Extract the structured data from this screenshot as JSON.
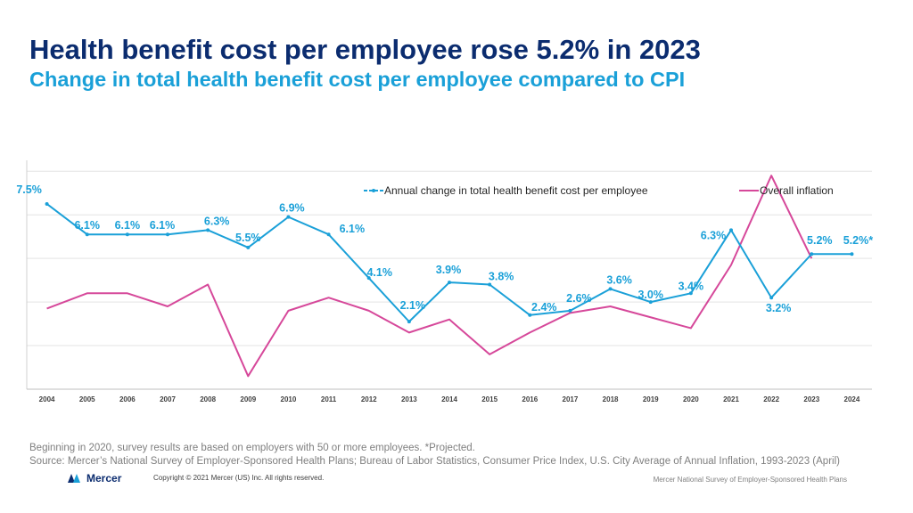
{
  "title": "Health benefit cost per employee rose 5.2% in 2023",
  "subtitle": "Change in total health benefit cost per employee compared to CPI",
  "chart_data": {
    "type": "line",
    "categories": [
      "2004",
      "2005",
      "2006",
      "2007",
      "2008",
      "2009",
      "2010",
      "2011",
      "2012",
      "2013",
      "2014",
      "2015",
      "2016",
      "2017",
      "2018",
      "2019",
      "2020",
      "2021",
      "2022",
      "2023",
      "2024"
    ],
    "series": [
      {
        "name": "Annual change in total health benefit cost per employee",
        "color": "#1aa0d8",
        "values": [
          7.5,
          6.1,
          6.1,
          6.1,
          6.3,
          5.5,
          6.9,
          6.1,
          4.1,
          2.1,
          3.9,
          3.8,
          2.4,
          2.6,
          3.6,
          3.0,
          3.4,
          6.3,
          3.2,
          5.2,
          5.2
        ],
        "labels": [
          "7.5%",
          "6.1%",
          "6.1%",
          "6.1%",
          "6.3%",
          "5.5%",
          "6.9%",
          "6.1%",
          "4.1%",
          "2.1%",
          "3.9%",
          "3.8%",
          "2.4%",
          "2.6%",
          "3.6%",
          "3.0%",
          "3.4%",
          "6.3%",
          "3.2%",
          "5.2%",
          "5.2%*"
        ]
      },
      {
        "name": "Overall inflation",
        "color": "#d6489a",
        "values": [
          2.7,
          3.4,
          3.4,
          2.8,
          3.8,
          -0.4,
          2.6,
          3.2,
          2.6,
          1.6,
          2.2,
          0.6,
          1.6,
          2.5,
          2.8,
          2.3,
          1.8,
          4.7,
          8.8,
          5.0,
          null
        ]
      }
    ],
    "ylim": [
      -1,
      9.5
    ],
    "grid": true,
    "legend": "top-right",
    "xlabel": "",
    "ylabel": ""
  },
  "footnote": {
    "line1": "Beginning in 2020, survey results are based on employers with 50 or more employees. *Projected.",
    "line2": "Source: Mercer’s National Survey of Employer-Sponsored Health Plans; Bureau of Labor Statistics, Consumer Price Index, U.S. City Average of Annual Inflation, 1993-2023 (April)"
  },
  "footer": {
    "logo_text": "Mercer",
    "copyright": "Copyright © 2021 Mercer (US) Inc. All rights reserved.",
    "survey": "Mercer National Survey of Employer-Sponsored Health Plans"
  }
}
